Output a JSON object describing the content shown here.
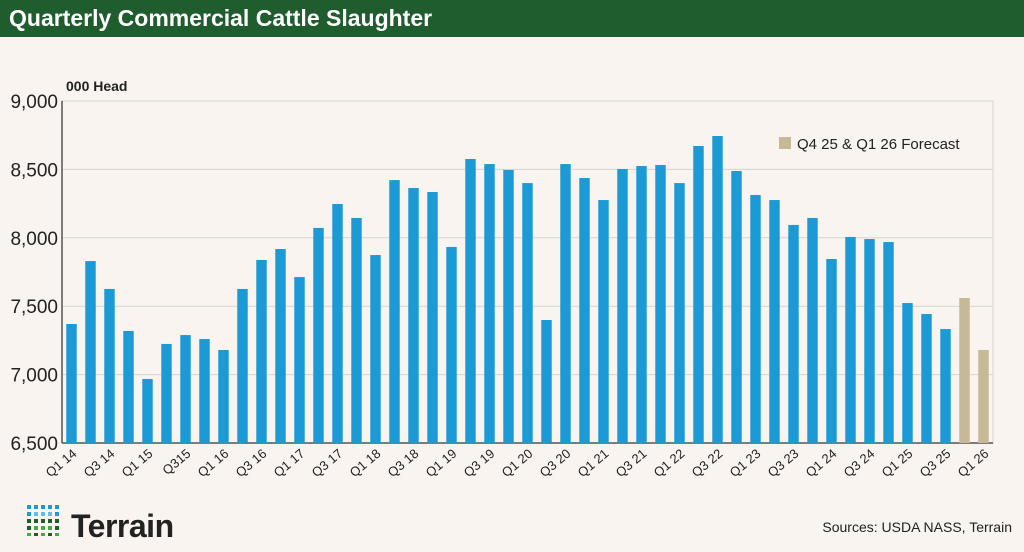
{
  "header": {
    "title": "Quarterly Commercial Cattle Slaughter"
  },
  "footer": {
    "logo_text": "Terrain",
    "sources": "Sources: USDA NASS, Terrain"
  },
  "colors": {
    "header_bg": "#1f5c2e",
    "actual": "#1b9ad6",
    "forecast": "#c5b996",
    "background": "#f9f4ef"
  },
  "chart_data": {
    "type": "bar",
    "title": "Quarterly Commercial Cattle Slaughter",
    "ylabel": "000 Head",
    "ylim": [
      6500,
      9000
    ],
    "yticks": [
      6500,
      7000,
      7500,
      8000,
      8500,
      9000
    ],
    "ytick_labels": [
      "6,500",
      "7,000",
      "7,500",
      "8,000",
      "8,500",
      "9,000"
    ],
    "grid": true,
    "legend": {
      "label": "Q4 25 & Q1 26 Forecast",
      "placement": "top-right"
    },
    "xtick_labels": [
      "Q1 14",
      "Q3 14",
      "Q1 15",
      "Q315",
      "Q1 16",
      "Q3 16",
      "Q1 17",
      "Q3 17",
      "Q1 18",
      "Q3 18",
      "Q1 19",
      "Q3 19",
      "Q1 20",
      "Q3 20",
      "Q1 21",
      "Q3 21",
      "Q1 22",
      "Q3 22",
      "Q1 23",
      "Q3 23",
      "Q1 24",
      "Q3 24",
      "Q1 25",
      "Q3 25",
      "Q1 26"
    ],
    "values": [
      7370,
      7830,
      7626,
      7319,
      6968,
      7224,
      7289,
      7260,
      7180,
      7626,
      7838,
      7918,
      7713,
      8072,
      8247,
      8145,
      7874,
      8422,
      8364,
      8335,
      7933,
      8576,
      8539,
      8496,
      8400,
      7399,
      8539,
      8437,
      8276,
      8503,
      8525,
      8532,
      8400,
      8671,
      8744,
      8488,
      8313,
      8276,
      8094,
      8145,
      7845,
      8006,
      7991,
      7969,
      7523,
      7443,
      7333,
      7560,
      7180
    ],
    "forecast_count": 2
  }
}
